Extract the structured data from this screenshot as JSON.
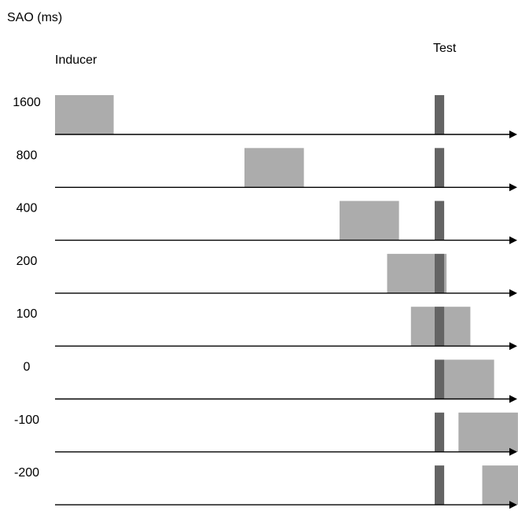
{
  "header": {
    "axis_title": "SAO (ms)",
    "inducer_label": "Inducer",
    "test_label": "Test"
  },
  "colors": {
    "inducer": "#acacac",
    "test": "#646464",
    "axis": "#000000"
  },
  "chart_data": {
    "type": "timeline",
    "units": "ms",
    "test_onset": 0,
    "test_offset": 40,
    "inducer_offset": 250,
    "rows": [
      {
        "label": "1600",
        "sao": 1600
      },
      {
        "label": "800",
        "sao": 800
      },
      {
        "label": "400",
        "sao": 400
      },
      {
        "label": "200",
        "sao": 200
      },
      {
        "label": "100",
        "sao": 100
      },
      {
        "label": "0",
        "sao": 0
      },
      {
        "label": "-100",
        "sao": -100
      },
      {
        "label": "-200",
        "sao": -200
      }
    ]
  }
}
